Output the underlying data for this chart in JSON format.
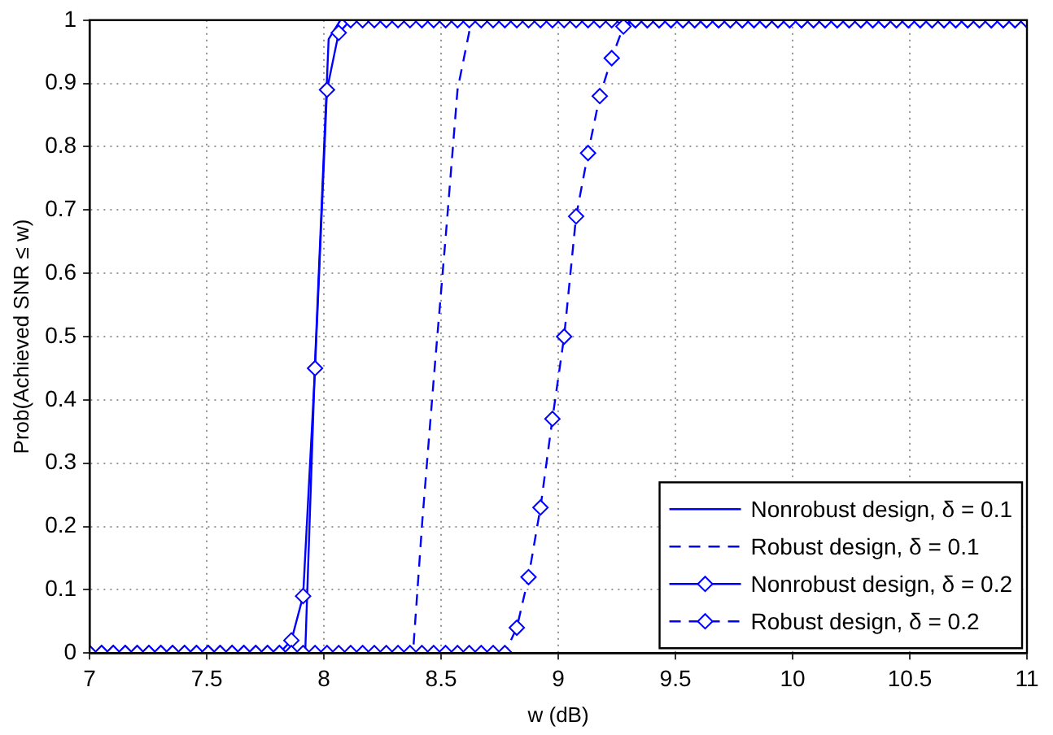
{
  "chart_data": {
    "type": "line",
    "xlabel": "w (dB)",
    "ylabel": "Prob(Achieved SNR ≤ w)",
    "x": [
      7.0,
      7.051,
      7.101,
      7.152,
      7.203,
      7.253,
      7.304,
      7.354,
      7.405,
      7.456,
      7.506,
      7.557,
      7.608,
      7.658,
      7.709,
      7.759,
      7.81,
      7.861,
      7.911,
      7.962,
      8.013,
      8.063,
      8.114,
      8.165,
      8.215,
      8.266,
      8.316,
      8.367,
      8.418,
      8.468,
      8.519,
      8.57,
      8.62,
      8.671,
      8.722,
      8.772,
      8.823,
      8.873,
      8.924,
      8.975,
      9.025,
      9.076,
      9.127,
      9.177,
      9.228,
      9.278,
      9.329,
      9.38,
      9.43,
      9.481,
      9.532,
      9.582,
      9.633,
      9.684,
      9.734,
      9.785,
      9.835,
      9.886,
      9.937,
      9.987,
      10.038,
      10.089,
      10.139,
      10.19,
      10.241,
      10.291,
      10.342,
      10.392,
      10.443,
      10.494,
      10.544,
      10.595,
      10.646,
      10.696,
      10.747,
      10.797,
      10.848,
      10.899,
      10.949,
      11.0
    ],
    "series": [
      {
        "name": "Nonrobust design, δ = 0.1",
        "color": "#0000ff",
        "line_style": "solid",
        "marker": "none",
        "x": [
          7,
          7.92,
          7.962,
          8.02,
          8.07,
          11
        ],
        "values": [
          0,
          0,
          0.46,
          0.97,
          1,
          1
        ]
      },
      {
        "name": "Robust design, δ = 0.1",
        "color": "#0000ff",
        "line_style": "dashed",
        "marker": "none",
        "x": [
          7,
          8.38,
          8.42,
          8.47,
          8.52,
          8.57,
          8.63,
          11
        ],
        "values": [
          0,
          0,
          0.21,
          0.44,
          0.66,
          0.89,
          1,
          1
        ]
      },
      {
        "name": "Nonrobust design, δ = 0.2",
        "color": "#0000ff",
        "line_style": "solid",
        "marker": "diamond",
        "values": [
          0,
          0,
          0,
          0,
          0,
          0,
          0,
          0,
          0,
          0,
          0,
          0,
          0,
          0,
          0,
          0,
          0,
          0.02,
          0.09,
          0.45,
          0.89,
          0.98,
          1,
          1,
          1,
          1,
          1,
          1,
          1,
          1,
          1,
          1,
          1,
          1,
          1,
          1,
          1,
          1,
          1,
          1,
          1,
          1,
          1,
          1,
          1,
          1,
          1,
          1,
          1,
          1,
          1,
          1,
          1,
          1,
          1,
          1,
          1,
          1,
          1,
          1,
          1,
          1,
          1,
          1,
          1,
          1,
          1,
          1,
          1,
          1,
          1,
          1,
          1,
          1,
          1,
          1,
          1,
          1,
          1,
          1
        ]
      },
      {
        "name": "Robust design, δ = 0.2",
        "color": "#0000ff",
        "line_style": "dashed",
        "marker": "diamond",
        "values": [
          0,
          0,
          0,
          0,
          0,
          0,
          0,
          0,
          0,
          0,
          0,
          0,
          0,
          0,
          0,
          0,
          0,
          0,
          0,
          0,
          0,
          0,
          0,
          0,
          0,
          0,
          0,
          0,
          0,
          0,
          0,
          0,
          0,
          0,
          0,
          0,
          0.04,
          0.12,
          0.23,
          0.37,
          0.5,
          0.69,
          0.79,
          0.88,
          0.94,
          0.99,
          1,
          1,
          1,
          1,
          1,
          1,
          1,
          1,
          1,
          1,
          1,
          1,
          1,
          1,
          1,
          1,
          1,
          1,
          1,
          1,
          1,
          1,
          1,
          1,
          1,
          1,
          1,
          1,
          1,
          1,
          1,
          1,
          1,
          1
        ]
      }
    ],
    "xlim": [
      7,
      11
    ],
    "xticks": [
      7,
      7.5,
      8,
      8.5,
      9,
      9.5,
      10,
      10.5,
      11
    ],
    "ylim": [
      0,
      1
    ],
    "yticks": [
      0,
      0.1,
      0.2,
      0.3,
      0.4,
      0.5,
      0.6,
      0.7,
      0.8,
      0.9,
      1
    ],
    "grid": true,
    "legend": "bottom right"
  }
}
